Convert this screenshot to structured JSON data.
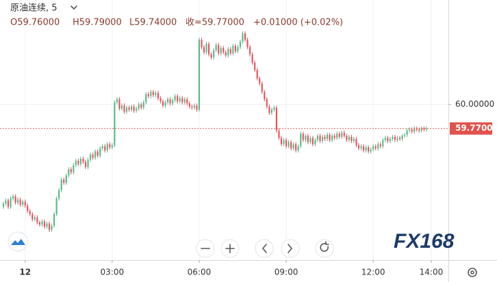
{
  "chart_data": {
    "type": "candlestick",
    "header": {
      "symbol": "原油连续, 5",
      "open": "O59.76000",
      "high": "H59.79000",
      "low": "L59.74000",
      "close": "收=59.77000",
      "change": "+0.01000 (+0.02%)"
    },
    "watermark": "FX168",
    "up_color": "#53b987",
    "down_color": "#eb4d5c",
    "last_price": {
      "value": 59.77,
      "label": "59.77000"
    },
    "last_price_color": "#e0534c",
    "xlim": [
      -1.4,
      184.1
    ],
    "xticks": [
      {
        "value": 9,
        "label": "12"
      },
      {
        "value": 45,
        "label": "03:00"
      },
      {
        "value": 81,
        "label": "06:00"
      },
      {
        "value": 117,
        "label": "09:00"
      },
      {
        "value": 153,
        "label": "12:00"
      },
      {
        "value": 177,
        "label": "14:00"
      }
    ],
    "ylim": [
      58.51,
      61.0
    ],
    "yticks": [
      {
        "value": 60,
        "label": "60.00000"
      }
    ],
    "grid": true,
    "open": [
      59.02,
      59.05,
      59.08,
      59.02,
      59.1,
      59.12,
      59.06,
      59.09,
      59.04,
      59.07,
      59.03,
      58.98,
      58.95,
      58.9,
      58.92,
      58.87,
      58.85,
      58.88,
      58.83,
      58.86,
      58.8,
      58.84,
      58.95,
      59.1,
      59.18,
      59.28,
      59.25,
      59.32,
      59.38,
      59.35,
      59.42,
      59.46,
      59.43,
      59.48,
      59.45,
      59.4,
      59.47,
      59.52,
      59.49,
      59.55,
      59.51,
      59.58,
      59.6,
      59.56,
      59.62,
      59.59,
      59.61,
      60.02,
      60.05,
      59.96,
      59.99,
      59.93,
      59.97,
      59.95,
      59.98,
      59.94,
      59.96,
      60.0,
      59.97,
      60.02,
      60.1,
      60.08,
      60.12,
      60.09,
      60.11,
      60.06,
      60.03,
      59.99,
      60.02,
      60.05,
      60.01,
      60.04,
      60.08,
      60.03,
      60.06,
      60.02,
      60.05,
      60.01,
      59.98,
      59.97,
      59.99,
      59.95,
      60.62,
      60.55,
      60.5,
      60.58,
      60.48,
      60.45,
      60.52,
      60.57,
      60.49,
      60.54,
      60.5,
      60.47,
      60.53,
      60.49,
      60.56,
      60.51,
      60.55,
      60.6,
      60.68,
      60.62,
      60.55,
      60.48,
      60.4,
      60.33,
      60.25,
      60.2,
      60.12,
      60.05,
      59.98,
      59.92,
      59.95,
      59.97,
      59.75,
      59.68,
      59.62,
      59.66,
      59.6,
      59.64,
      59.58,
      59.62,
      59.56,
      59.6,
      59.72,
      59.66,
      59.7,
      59.64,
      59.68,
      59.62,
      59.66,
      59.7,
      59.65,
      59.69,
      59.67,
      59.71,
      59.66,
      59.7,
      59.68,
      59.72,
      59.69,
      59.73,
      59.7,
      59.66,
      59.69,
      59.65,
      59.67,
      59.61,
      59.58,
      59.6,
      59.56,
      59.59,
      59.55,
      59.57,
      59.6,
      59.58,
      59.62,
      59.6,
      59.66,
      59.68,
      59.65,
      59.67,
      59.69,
      59.66,
      59.68,
      59.67,
      59.7,
      59.71,
      59.75,
      59.76,
      59.74,
      59.77,
      59.76,
      59.75,
      59.77,
      59.76
    ],
    "high": [
      59.07,
      59.1,
      59.1,
      59.12,
      59.14,
      59.14,
      59.11,
      59.11,
      59.09,
      59.09,
      59.05,
      59.0,
      58.97,
      58.94,
      58.94,
      58.89,
      58.9,
      58.9,
      58.88,
      58.88,
      58.86,
      58.97,
      59.12,
      59.2,
      59.3,
      59.3,
      59.34,
      59.4,
      59.4,
      59.44,
      59.48,
      59.48,
      59.5,
      59.5,
      59.47,
      59.49,
      59.54,
      59.54,
      59.57,
      59.57,
      59.6,
      59.62,
      59.62,
      59.64,
      59.64,
      59.63,
      60.04,
      60.07,
      60.07,
      60.01,
      60.01,
      59.99,
      59.99,
      60.0,
      60.0,
      59.98,
      60.02,
      60.02,
      60.04,
      60.12,
      60.12,
      60.14,
      60.14,
      60.13,
      60.13,
      60.08,
      60.05,
      60.04,
      60.07,
      60.07,
      60.06,
      60.1,
      60.1,
      60.08,
      60.08,
      60.07,
      60.07,
      60.03,
      60.0,
      60.01,
      60.01,
      60.64,
      60.64,
      60.57,
      60.6,
      60.6,
      60.5,
      60.54,
      60.59,
      60.59,
      60.56,
      60.56,
      60.52,
      60.55,
      60.55,
      60.58,
      60.58,
      60.57,
      60.62,
      60.7,
      60.7,
      60.64,
      60.57,
      60.5,
      60.42,
      60.35,
      60.27,
      60.22,
      60.14,
      60.07,
      60.0,
      59.97,
      59.99,
      59.99,
      59.77,
      59.7,
      59.68,
      59.68,
      59.66,
      59.66,
      59.64,
      59.64,
      59.62,
      59.74,
      59.74,
      59.72,
      59.72,
      59.7,
      59.7,
      59.68,
      59.72,
      59.72,
      59.71,
      59.71,
      59.73,
      59.73,
      59.72,
      59.72,
      59.74,
      59.74,
      59.75,
      59.75,
      59.72,
      59.71,
      59.71,
      59.69,
      59.69,
      59.63,
      59.62,
      59.62,
      59.61,
      59.61,
      59.59,
      59.62,
      59.62,
      59.64,
      59.64,
      59.68,
      59.7,
      59.7,
      59.69,
      59.71,
      59.71,
      59.7,
      59.7,
      59.72,
      59.73,
      59.77,
      59.78,
      59.78,
      59.79,
      59.79,
      59.78,
      59.79,
      59.79,
      59.79
    ],
    "low": [
      59.0,
      59.03,
      59.0,
      59.0,
      59.08,
      59.04,
      59.04,
      59.02,
      59.02,
      59.01,
      58.96,
      58.93,
      58.88,
      58.88,
      58.85,
      58.83,
      58.83,
      58.81,
      58.81,
      58.78,
      58.78,
      58.82,
      58.93,
      59.08,
      59.16,
      59.23,
      59.23,
      59.3,
      59.33,
      59.33,
      59.4,
      59.41,
      59.41,
      59.43,
      59.38,
      59.38,
      59.45,
      59.47,
      59.47,
      59.49,
      59.49,
      59.56,
      59.54,
      59.54,
      59.57,
      59.57,
      59.59,
      60.0,
      59.94,
      59.94,
      59.91,
      59.91,
      59.93,
      59.93,
      59.92,
      59.92,
      59.94,
      59.95,
      59.95,
      60.0,
      60.06,
      60.06,
      60.07,
      60.07,
      60.04,
      60.01,
      59.97,
      59.97,
      60.0,
      59.99,
      59.99,
      60.02,
      60.01,
      60.01,
      60.0,
      60.0,
      59.99,
      59.96,
      59.95,
      59.95,
      59.93,
      59.93,
      60.53,
      60.48,
      60.48,
      60.46,
      60.43,
      60.43,
      60.5,
      60.47,
      60.47,
      60.48,
      60.45,
      60.45,
      60.47,
      60.47,
      60.49,
      60.49,
      60.53,
      60.58,
      60.6,
      60.53,
      60.46,
      60.38,
      60.31,
      60.23,
      60.18,
      60.1,
      60.03,
      59.96,
      59.9,
      59.9,
      59.93,
      59.73,
      59.66,
      59.6,
      59.6,
      59.58,
      59.58,
      59.56,
      59.56,
      59.54,
      59.54,
      59.58,
      59.64,
      59.64,
      59.62,
      59.62,
      59.6,
      59.6,
      59.64,
      59.63,
      59.63,
      59.65,
      59.65,
      59.64,
      59.64,
      59.66,
      59.66,
      59.67,
      59.67,
      59.68,
      59.64,
      59.64,
      59.63,
      59.63,
      59.59,
      59.56,
      59.56,
      59.54,
      59.54,
      59.53,
      59.53,
      59.55,
      59.56,
      59.56,
      59.58,
      59.58,
      59.64,
      59.63,
      59.63,
      59.65,
      59.64,
      59.64,
      59.65,
      59.65,
      59.68,
      59.69,
      59.73,
      59.72,
      59.72,
      59.74,
      59.73,
      59.73,
      59.74,
      59.74
    ],
    "close": [
      59.05,
      59.08,
      59.02,
      59.1,
      59.12,
      59.06,
      59.09,
      59.04,
      59.07,
      59.03,
      58.98,
      58.95,
      58.9,
      58.92,
      58.87,
      58.85,
      58.88,
      58.83,
      58.86,
      58.8,
      58.84,
      58.95,
      59.1,
      59.18,
      59.28,
      59.25,
      59.32,
      59.38,
      59.35,
      59.42,
      59.46,
      59.43,
      59.48,
      59.45,
      59.4,
      59.47,
      59.52,
      59.49,
      59.55,
      59.51,
      59.58,
      59.6,
      59.56,
      59.62,
      59.59,
      59.61,
      60.02,
      60.05,
      59.96,
      59.99,
      59.93,
      59.97,
      59.95,
      59.98,
      59.94,
      59.96,
      60.0,
      59.97,
      60.02,
      60.1,
      60.08,
      60.12,
      60.09,
      60.11,
      60.06,
      60.03,
      59.99,
      60.02,
      60.05,
      60.01,
      60.04,
      60.08,
      60.03,
      60.06,
      60.02,
      60.05,
      60.01,
      59.98,
      59.97,
      59.99,
      59.95,
      60.62,
      60.55,
      60.5,
      60.58,
      60.48,
      60.45,
      60.52,
      60.57,
      60.49,
      60.54,
      60.5,
      60.47,
      60.53,
      60.49,
      60.56,
      60.51,
      60.55,
      60.6,
      60.68,
      60.62,
      60.55,
      60.48,
      60.4,
      60.33,
      60.25,
      60.2,
      60.12,
      60.05,
      59.98,
      59.92,
      59.95,
      59.97,
      59.75,
      59.68,
      59.62,
      59.66,
      59.6,
      59.64,
      59.58,
      59.62,
      59.56,
      59.6,
      59.72,
      59.66,
      59.7,
      59.64,
      59.68,
      59.62,
      59.66,
      59.7,
      59.65,
      59.69,
      59.67,
      59.71,
      59.66,
      59.7,
      59.68,
      59.72,
      59.69,
      59.73,
      59.7,
      59.66,
      59.69,
      59.65,
      59.67,
      59.61,
      59.58,
      59.6,
      59.56,
      59.59,
      59.55,
      59.57,
      59.6,
      59.58,
      59.62,
      59.6,
      59.66,
      59.68,
      59.65,
      59.67,
      59.69,
      59.66,
      59.68,
      59.67,
      59.7,
      59.71,
      59.75,
      59.76,
      59.74,
      59.77,
      59.76,
      59.75,
      59.77,
      59.76,
      59.77
    ]
  }
}
